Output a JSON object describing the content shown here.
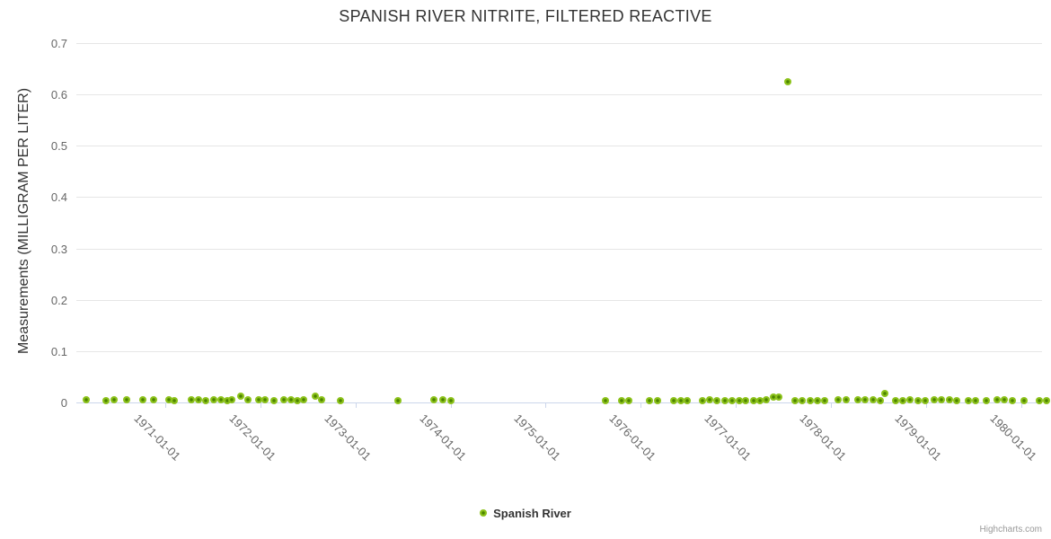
{
  "title": "SPANISH RIVER NITRITE, FILTERED REACTIVE",
  "credits": "Highcharts.com",
  "legend": {
    "series_label": "Spanish River"
  },
  "colors": {
    "marker_fill": "#8cc21a",
    "marker_center": "#4c8400",
    "grid": "#e6e6e6",
    "axis": "#ccd6eb",
    "title_text": "#333333",
    "label_text": "#666666",
    "credits_text": "#999999"
  },
  "chart_data": {
    "type": "scatter",
    "title": "SPANISH RIVER NITRITE, FILTERED REACTIVE",
    "xlabel": "",
    "ylabel": "Measurements (MILLIGRAM PER LITER)",
    "ylim": [
      0,
      0.7
    ],
    "xlim_decimal_years": [
      1970.07,
      1980.22
    ],
    "y_ticks": [
      "0",
      "0.1",
      "0.2",
      "0.3",
      "0.4",
      "0.5",
      "0.6",
      "0.7"
    ],
    "x_ticks": [
      "1971-01-01",
      "1972-01-01",
      "1973-01-01",
      "1974-01-01",
      "1975-01-01",
      "1976-01-01",
      "1977-01-01",
      "1978-01-01",
      "1979-01-01",
      "1980-01-01"
    ],
    "grid": true,
    "legend_position": "bottom-center",
    "marker_radius": 4,
    "series": [
      {
        "name": "Spanish River",
        "points": [
          [
            "1970-03-03",
            0.005
          ],
          [
            "1970-05-18",
            0.004
          ],
          [
            "1970-06-17",
            0.005
          ],
          [
            "1970-08-04",
            0.005
          ],
          [
            "1970-10-06",
            0.005
          ],
          [
            "1970-11-19",
            0.005
          ],
          [
            "1971-01-14",
            0.005
          ],
          [
            "1971-02-07",
            0.004
          ],
          [
            "1971-04-10",
            0.005
          ],
          [
            "1971-05-07",
            0.005
          ],
          [
            "1971-06-03",
            0.004
          ],
          [
            "1971-07-04",
            0.005
          ],
          [
            "1971-08-01",
            0.005
          ],
          [
            "1971-08-25",
            0.004
          ],
          [
            "1971-09-15",
            0.005
          ],
          [
            "1971-10-16",
            0.012
          ],
          [
            "1971-11-13",
            0.005
          ],
          [
            "1971-12-24",
            0.005
          ],
          [
            "1972-01-21",
            0.005
          ],
          [
            "1972-02-24",
            0.004
          ],
          [
            "1972-03-30",
            0.005
          ],
          [
            "1972-04-27",
            0.005
          ],
          [
            "1972-05-21",
            0.004
          ],
          [
            "1972-06-14",
            0.005
          ],
          [
            "1972-07-29",
            0.012
          ],
          [
            "1972-08-25",
            0.005
          ],
          [
            "1972-11-03",
            0.004
          ],
          [
            "1973-06-11",
            0.004
          ],
          [
            "1973-10-30",
            0.006
          ],
          [
            "1973-12-01",
            0.006
          ],
          [
            "1974-01-01",
            0.004
          ],
          [
            "1975-08-16",
            0.003
          ],
          [
            "1975-10-20",
            0.004
          ],
          [
            "1975-11-17",
            0.004
          ],
          [
            "1976-02-04",
            0.004
          ],
          [
            "1976-03-06",
            0.004
          ],
          [
            "1976-05-07",
            0.004
          ],
          [
            "1976-06-03",
            0.004
          ],
          [
            "1976-06-27",
            0.004
          ],
          [
            "1976-08-25",
            0.004
          ],
          [
            "1976-09-22",
            0.005
          ],
          [
            "1976-10-19",
            0.004
          ],
          [
            "1976-11-19",
            0.004
          ],
          [
            "1976-12-17",
            0.004
          ],
          [
            "1977-01-14",
            0.004
          ],
          [
            "1977-02-06",
            0.004
          ],
          [
            "1977-03-07",
            0.004
          ],
          [
            "1977-03-31",
            0.004
          ],
          [
            "1977-04-27",
            0.005
          ],
          [
            "1977-05-24",
            0.01
          ],
          [
            "1977-06-14",
            0.01
          ],
          [
            "1977-07-18",
            0.625
          ],
          [
            "1977-08-15",
            0.004
          ],
          [
            "1977-09-11",
            0.004
          ],
          [
            "1977-10-13",
            0.004
          ],
          [
            "1977-11-09",
            0.004
          ],
          [
            "1977-12-07",
            0.004
          ],
          [
            "1978-01-28",
            0.005
          ],
          [
            "1978-02-28",
            0.005
          ],
          [
            "1978-04-13",
            0.005
          ],
          [
            "1978-05-11",
            0.005
          ],
          [
            "1978-06-11",
            0.005
          ],
          [
            "1978-07-08",
            0.004
          ],
          [
            "1978-07-25",
            0.018
          ],
          [
            "1978-09-05",
            0.004
          ],
          [
            "1978-10-03",
            0.004
          ],
          [
            "1978-10-30",
            0.005
          ],
          [
            "1978-12-01",
            0.004
          ],
          [
            "1978-12-28",
            0.004
          ],
          [
            "1979-01-31",
            0.005
          ],
          [
            "1979-02-28",
            0.005
          ],
          [
            "1979-03-31",
            0.005
          ],
          [
            "1979-04-27",
            0.004
          ],
          [
            "1979-06-11",
            0.004
          ],
          [
            "1979-07-08",
            0.004
          ],
          [
            "1979-08-19",
            0.003
          ],
          [
            "1979-09-29",
            0.005
          ],
          [
            "1979-10-27",
            0.005
          ],
          [
            "1979-11-27",
            0.004
          ],
          [
            "1980-01-11",
            0.003
          ],
          [
            "1980-03-10",
            0.004
          ],
          [
            "1980-04-06",
            0.004
          ]
        ]
      }
    ]
  }
}
